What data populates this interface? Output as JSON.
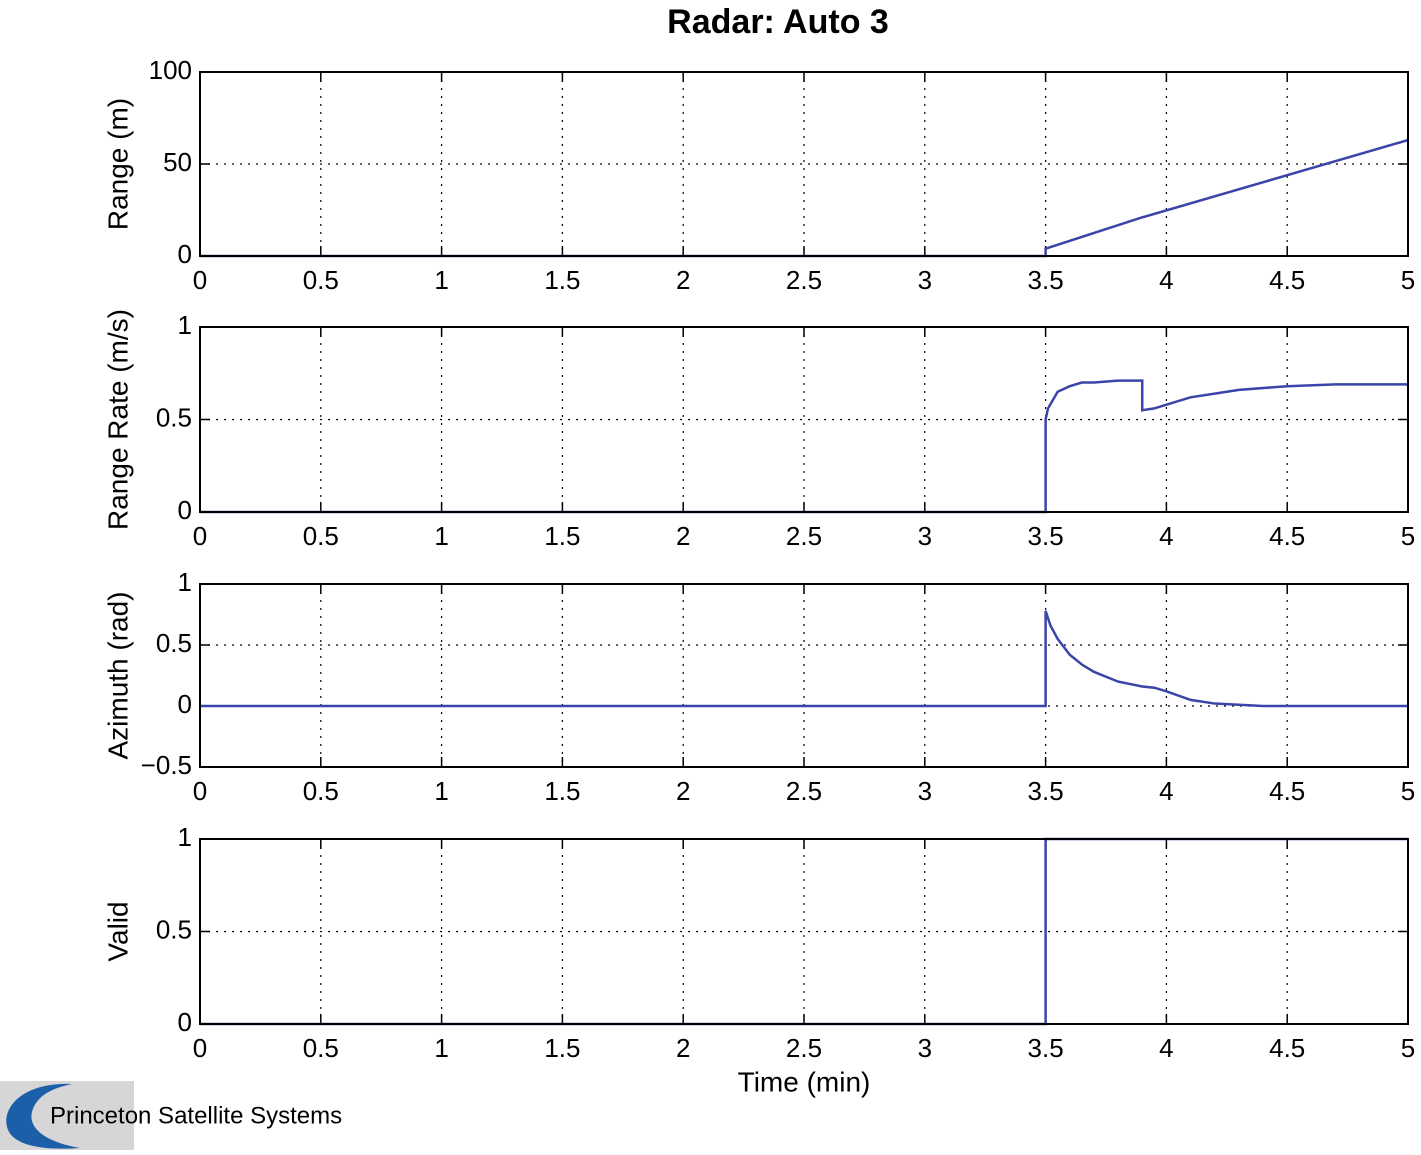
{
  "title": "Radar: Auto 3",
  "logo": {
    "text": "Princeton Satellite Systems"
  },
  "chart_data": [
    {
      "type": "line",
      "ylabel": "Range (m)",
      "color": "#3b44a8",
      "grid": true,
      "x": [
        0,
        3.5,
        3.5,
        3.9,
        5
      ],
      "values": [
        0,
        0,
        4,
        21,
        63
      ],
      "xlim": [
        0,
        5
      ],
      "xticks": [
        0,
        0.5,
        1,
        1.5,
        2,
        2.5,
        3,
        3.5,
        4,
        4.5,
        5
      ],
      "ylim": [
        0,
        100
      ],
      "yticks": [
        0,
        50,
        100
      ]
    },
    {
      "type": "line",
      "ylabel": "Range Rate (m/s)",
      "color": "#3b44a8",
      "grid": true,
      "x": [
        0,
        3.5,
        3.5,
        3.51,
        3.55,
        3.6,
        3.65,
        3.7,
        3.8,
        3.9,
        3.9,
        3.95,
        4.0,
        4.1,
        4.2,
        4.3,
        4.5,
        4.7,
        5
      ],
      "values": [
        0,
        0,
        0.5,
        0.56,
        0.65,
        0.68,
        0.7,
        0.7,
        0.71,
        0.71,
        0.55,
        0.56,
        0.58,
        0.62,
        0.64,
        0.66,
        0.68,
        0.69,
        0.69
      ],
      "xlim": [
        0,
        5
      ],
      "xticks": [
        0,
        0.5,
        1,
        1.5,
        2,
        2.5,
        3,
        3.5,
        4,
        4.5,
        5
      ],
      "ylim": [
        0,
        1
      ],
      "yticks": [
        0,
        0.5,
        1
      ]
    },
    {
      "type": "line",
      "ylabel": "Azimuth (rad)",
      "color": "#3b44a8",
      "grid": true,
      "x": [
        0,
        3.5,
        3.5,
        3.52,
        3.55,
        3.6,
        3.65,
        3.7,
        3.8,
        3.9,
        3.95,
        4.0,
        4.1,
        4.2,
        4.4,
        5
      ],
      "values": [
        0,
        0,
        0.78,
        0.66,
        0.55,
        0.42,
        0.34,
        0.28,
        0.2,
        0.16,
        0.15,
        0.12,
        0.05,
        0.02,
        0,
        0
      ],
      "xlim": [
        0,
        5
      ],
      "xticks": [
        0,
        0.5,
        1,
        1.5,
        2,
        2.5,
        3,
        3.5,
        4,
        4.5,
        5
      ],
      "ylim": [
        -0.5,
        1
      ],
      "yticks": [
        {
          "value": -0.5,
          "label": "−0.5"
        },
        0,
        0.5,
        1
      ]
    },
    {
      "type": "line",
      "ylabel": "Valid",
      "xlabel": "Time (min)",
      "color": "#3b44a8",
      "grid": true,
      "x": [
        0,
        3.5,
        3.5,
        5
      ],
      "values": [
        0,
        0,
        1,
        1
      ],
      "xlim": [
        0,
        5
      ],
      "xticks": [
        0,
        0.5,
        1,
        1.5,
        2,
        2.5,
        3,
        3.5,
        4,
        4.5,
        5
      ],
      "ylim": [
        0,
        1
      ],
      "yticks": [
        0,
        0.5,
        1
      ]
    }
  ]
}
